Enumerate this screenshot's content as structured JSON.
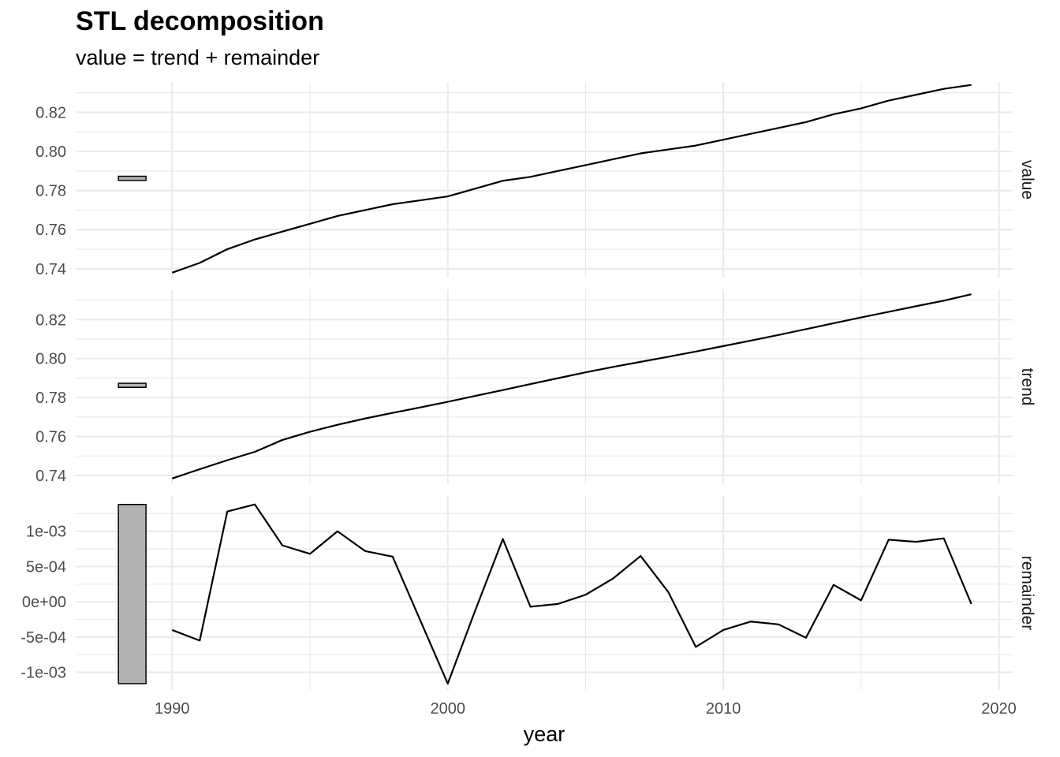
{
  "title": "STL decomposition",
  "subtitle": "value = trend + remainder",
  "chart_data": {
    "type": "line",
    "title": "STL decomposition",
    "subtitle": "value = trend + remainder",
    "xlabel": "year",
    "ylabel": "",
    "xlim": [
      1986.5,
      2020.5
    ],
    "x_ticks": [
      1990,
      2000,
      2010,
      2020
    ],
    "x_tick_labels": [
      "1990",
      "2000",
      "2010",
      "2020"
    ],
    "grid": true,
    "colors": {
      "line": "#000000",
      "grid": "#ebebeb",
      "bar_fill": "#b3b3b3"
    },
    "x": [
      1990,
      1991,
      1992,
      1993,
      1994,
      1995,
      1996,
      1997,
      1998,
      1999,
      2000,
      2001,
      2002,
      2003,
      2004,
      2005,
      2006,
      2007,
      2008,
      2009,
      2010,
      2011,
      2012,
      2013,
      2014,
      2015,
      2016,
      2017,
      2018,
      2019
    ],
    "panels": [
      {
        "name": "value",
        "ylim": [
          0.7355,
          0.8355
        ],
        "y_ticks": [
          0.74,
          0.76,
          0.78,
          0.8,
          0.82
        ],
        "y_tick_labels": [
          "0.74",
          "0.76",
          "0.78",
          "0.80",
          "0.82"
        ],
        "values": [
          0.738,
          0.743,
          0.75,
          0.755,
          0.759,
          0.763,
          0.767,
          0.77,
          0.773,
          0.775,
          0.777,
          0.781,
          0.785,
          0.787,
          0.79,
          0.793,
          0.796,
          0.799,
          0.801,
          0.803,
          0.806,
          0.809,
          0.812,
          0.815,
          0.819,
          0.822,
          0.826,
          0.829,
          0.832,
          0.834
        ],
        "range_bar": [
          0.7852,
          0.7873
        ]
      },
      {
        "name": "trend",
        "ylim": [
          0.7355,
          0.8355
        ],
        "y_ticks": [
          0.74,
          0.76,
          0.78,
          0.8,
          0.82
        ],
        "y_tick_labels": [
          "0.74",
          "0.76",
          "0.78",
          "0.80",
          "0.82"
        ],
        "values": [
          0.7384,
          0.7432,
          0.7478,
          0.7521,
          0.7582,
          0.7624,
          0.766,
          0.7692,
          0.7721,
          0.7749,
          0.7778,
          0.7808,
          0.7838,
          0.7869,
          0.7899,
          0.7929,
          0.7957,
          0.7983,
          0.8009,
          0.8036,
          0.8064,
          0.8092,
          0.8121,
          0.8151,
          0.8181,
          0.8211,
          0.824,
          0.8269,
          0.8297,
          0.833
        ],
        "range_bar": [
          0.7852,
          0.7873
        ]
      },
      {
        "name": "remainder",
        "ylim": [
          -0.00125,
          0.0015
        ],
        "y_ticks": [
          -0.001,
          -0.0005,
          0,
          0.0005,
          0.001
        ],
        "y_tick_labels": [
          "-1e-03",
          "-5e-04",
          "0e+00",
          "5e-04",
          "1e-03"
        ],
        "values": [
          -0.0004,
          -0.00055,
          0.00128,
          0.00138,
          0.0008,
          0.00068,
          0.001,
          0.00072,
          0.00064,
          -0.00026,
          -0.00116,
          -0.00012,
          0.00089,
          -7e-05,
          -3e-05,
          0.0001,
          0.00033,
          0.00065,
          0.00014,
          -0.00064,
          -0.0004,
          -0.00028,
          -0.00032,
          -0.00051,
          0.00024,
          2e-05,
          0.00088,
          0.00085,
          0.0009,
          -3e-05
        ],
        "range_bar": [
          -0.00116,
          0.00138
        ]
      }
    ]
  }
}
